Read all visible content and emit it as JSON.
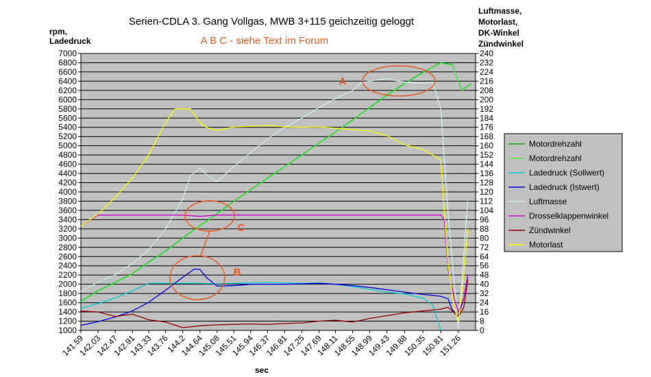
{
  "chart_data": {
    "type": "line",
    "title": "Serien-CDLA 3. Gang Vollgas, MWB 3+115 geichzeitig geloggt",
    "subtitle": "A  B  C - siehe Text im Forum",
    "xlabel": "sec",
    "ylabel_left": [
      "rpm,",
      "Ladedruck"
    ],
    "ylabel_right": [
      "Luftmasse,",
      "Motorlast,",
      "DK-Winkel",
      "Zündwinkel"
    ],
    "ylim_left": [
      1000,
      7000
    ],
    "ylim_right": [
      0,
      240
    ],
    "y_ticks_left": [
      "1000",
      "1200",
      "1400",
      "1600",
      "1800",
      "2000",
      "2200",
      "2400",
      "2600",
      "2800",
      "3000",
      "3200",
      "3400",
      "3600",
      "3800",
      "4000",
      "4200",
      "4400",
      "4600",
      "4800",
      "5000",
      "5200",
      "5400",
      "5600",
      "5800",
      "6000",
      "6200",
      "6400",
      "6600",
      "6800",
      "7000"
    ],
    "y_ticks_right": [
      "0",
      "8",
      "16",
      "24",
      "32",
      "40",
      "48",
      "56",
      "64",
      "72",
      "80",
      "88",
      "96",
      "104",
      "112",
      "120",
      "128",
      "136",
      "144",
      "152",
      "160",
      "168",
      "176",
      "184",
      "192",
      "200",
      "208",
      "216",
      "224",
      "232",
      "240"
    ],
    "x_ticks": [
      "141.59",
      "142.03",
      "142.47",
      "142.91",
      "143.33",
      "143.76",
      "144.2",
      "144.64",
      "145.08",
      "145.51",
      "145.94",
      "146.37",
      "146.81",
      "147.25",
      "147.69",
      "148.11",
      "148.55",
      "148.99",
      "149.43",
      "149.88",
      "150.35",
      "150.81",
      "151.26"
    ],
    "x_ticks_values": [
      141.59,
      142.03,
      142.47,
      142.91,
      143.33,
      143.76,
      144.2,
      144.64,
      145.08,
      145.51,
      145.94,
      146.37,
      146.81,
      147.25,
      147.69,
      148.11,
      148.55,
      148.99,
      149.43,
      149.88,
      150.35,
      150.81,
      151.26
    ],
    "xlim": [
      141.59,
      151.7
    ],
    "grid": true,
    "legend_position": "right",
    "colors": {
      "plot_background": "#c0c0c0",
      "grid": "#000000",
      "annotation": "#e85a1e"
    },
    "series": [
      {
        "name": "Motordrehzahl",
        "axis": "left",
        "color": "#00aa00",
        "x": [
          141.59,
          142.03,
          142.47,
          142.91,
          143.33,
          143.76,
          144.2,
          144.64,
          145.08,
          145.51,
          145.94,
          146.37,
          146.81,
          147.25,
          147.69,
          148.11,
          148.55,
          148.99,
          149.43,
          149.88,
          150.35,
          150.81,
          151.1,
          151.26,
          151.35,
          151.5,
          151.6
        ],
        "y": [
          1630,
          1860,
          2040,
          2230,
          2480,
          2720,
          3000,
          3270,
          3530,
          3800,
          4050,
          4300,
          4550,
          4800,
          5060,
          5300,
          5560,
          5830,
          6100,
          6350,
          6590,
          6800,
          6760,
          6400,
          6200,
          6300,
          6340
        ]
      },
      {
        "name": "Motordrehzahl",
        "axis": "left",
        "color": "#44ee44",
        "x": [
          141.59,
          142.03,
          142.47,
          142.91,
          143.33,
          143.76,
          144.2,
          144.64,
          145.08,
          145.51,
          145.94,
          146.37,
          146.81,
          147.25,
          147.69,
          148.11,
          148.55,
          148.99,
          149.43,
          149.88,
          150.35,
          150.81,
          151.1,
          151.26,
          151.35,
          151.5,
          151.6
        ],
        "y": [
          1620,
          1850,
          2030,
          2220,
          2470,
          2710,
          2990,
          3260,
          3520,
          3790,
          4040,
          4290,
          4540,
          4790,
          5050,
          5290,
          5550,
          5820,
          6090,
          6340,
          6580,
          6790,
          6750,
          6390,
          6190,
          6290,
          6330
        ]
      },
      {
        "name": "Ladedruck (Sollwert)",
        "axis": "left",
        "color": "#00cccc",
        "x": [
          141.59,
          142.03,
          142.47,
          142.91,
          143.33,
          143.76,
          144.2,
          144.64,
          145.08,
          145.51,
          145.94,
          146.37,
          146.81,
          147.25,
          147.69,
          148.11,
          148.55,
          148.99,
          149.43,
          149.88,
          150.35,
          150.6,
          150.81
        ],
        "y": [
          1480,
          1580,
          1700,
          1860,
          2020,
          2020,
          2020,
          2020,
          2010,
          2020,
          2030,
          2040,
          2030,
          2020,
          2030,
          2000,
          1950,
          1890,
          1830,
          1790,
          1700,
          1550,
          1000
        ]
      },
      {
        "name": "Ladedruck (Istwert)",
        "axis": "left",
        "color": "#0000dd",
        "x": [
          141.59,
          142.03,
          142.47,
          142.91,
          143.33,
          143.76,
          144.2,
          144.5,
          144.64,
          144.8,
          145.08,
          145.51,
          145.94,
          146.37,
          146.81,
          147.25,
          147.69,
          148.11,
          148.55,
          148.99,
          149.43,
          149.88,
          150.35,
          150.81,
          151.0,
          151.1,
          151.26,
          151.4,
          151.5
        ],
        "y": [
          1110,
          1190,
          1290,
          1420,
          1610,
          1870,
          2150,
          2330,
          2320,
          2150,
          1960,
          1970,
          2000,
          2000,
          2000,
          2010,
          2020,
          2000,
          1970,
          1930,
          1880,
          1830,
          1780,
          1740,
          1680,
          1450,
          1330,
          1700,
          2150
        ]
      },
      {
        "name": "Luftmasse",
        "axis": "left",
        "color": "#cceeee",
        "x": [
          141.59,
          142.03,
          142.47,
          142.91,
          143.33,
          143.76,
          144.2,
          144.4,
          144.64,
          144.8,
          145.08,
          145.51,
          145.94,
          146.37,
          146.81,
          147.25,
          147.69,
          148.11,
          148.55,
          148.75,
          148.99,
          149.43,
          149.6,
          149.88,
          150.35,
          150.6,
          150.81,
          151.0,
          151.26,
          151.5
        ],
        "y": [
          1840,
          2050,
          2200,
          2450,
          2750,
          3200,
          3850,
          4350,
          4520,
          4380,
          4220,
          4550,
          4850,
          5150,
          5400,
          5600,
          5830,
          6020,
          6200,
          6360,
          6400,
          6460,
          6420,
          6380,
          6360,
          6380,
          5800,
          3500,
          1050,
          3800
        ]
      },
      {
        "name": "Drosselklappenwinkel",
        "axis": "left",
        "color": "#cc00cc",
        "x": [
          141.59,
          142.03,
          142.47,
          142.91,
          143.33,
          143.76,
          144.2,
          144.64,
          145.08,
          145.51,
          145.94,
          146.37,
          146.81,
          147.25,
          147.69,
          148.11,
          148.55,
          148.99,
          149.43,
          149.88,
          150.35,
          150.81,
          150.9,
          151.0,
          151.15,
          151.26,
          151.4,
          151.5
        ],
        "y": [
          3260,
          3500,
          3500,
          3500,
          3500,
          3500,
          3500,
          3470,
          3500,
          3500,
          3500,
          3500,
          3500,
          3500,
          3500,
          3500,
          3500,
          3500,
          3500,
          3500,
          3500,
          3500,
          3400,
          2300,
          1700,
          1400,
          1700,
          2200
        ]
      },
      {
        "name": "Zündwinkel",
        "axis": "left",
        "color": "#990000",
        "x": [
          141.59,
          142.03,
          142.47,
          142.91,
          143.33,
          143.76,
          144.2,
          144.64,
          145.08,
          145.51,
          145.94,
          146.37,
          146.81,
          147.25,
          147.69,
          148.11,
          148.55,
          148.99,
          149.43,
          149.88,
          150.35,
          150.81,
          151.0,
          151.26,
          151.4,
          151.5
        ],
        "y": [
          1420,
          1400,
          1300,
          1350,
          1230,
          1180,
          1060,
          1100,
          1120,
          1130,
          1140,
          1130,
          1150,
          1160,
          1200,
          1220,
          1180,
          1260,
          1320,
          1380,
          1420,
          1460,
          1500,
          1300,
          1500,
          2100
        ]
      },
      {
        "name": "Motorlast",
        "axis": "left",
        "color": "#ffff00",
        "x": [
          141.59,
          142.03,
          142.47,
          142.91,
          143.33,
          143.76,
          144.0,
          144.2,
          144.4,
          144.64,
          144.8,
          145.08,
          145.51,
          145.94,
          146.37,
          146.81,
          147.25,
          147.69,
          148.11,
          148.55,
          148.99,
          149.43,
          149.88,
          150.35,
          150.6,
          150.81,
          150.9,
          151.0,
          151.15,
          151.26,
          151.4,
          151.5
        ],
        "y": [
          3260,
          3520,
          3880,
          4300,
          4800,
          5500,
          5800,
          5800,
          5800,
          5500,
          5400,
          5330,
          5410,
          5420,
          5440,
          5410,
          5400,
          5410,
          5380,
          5350,
          5320,
          5220,
          5020,
          4920,
          4800,
          4700,
          3600,
          2400,
          1500,
          1200,
          2200,
          3200
        ]
      }
    ],
    "annotations": [
      {
        "label": "A",
        "x": 148.2,
        "y": 6400
      },
      {
        "label": "B",
        "x": 145.5,
        "y": 2260
      },
      {
        "label": "C",
        "x": 145.6,
        "y": 3230
      }
    ]
  }
}
